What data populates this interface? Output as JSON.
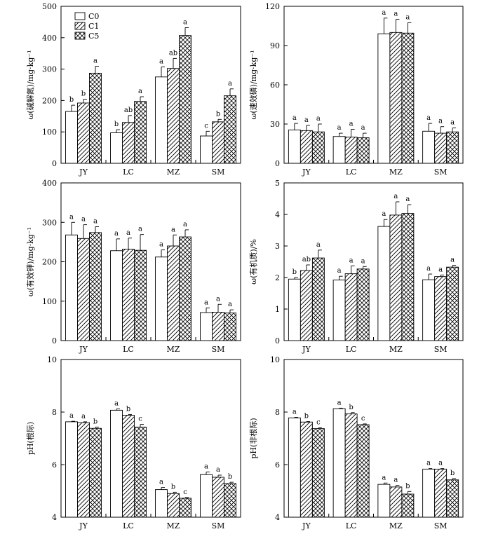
{
  "legend": [
    {
      "label": "C0",
      "pattern": "plain"
    },
    {
      "label": "C1",
      "pattern": "diagonal"
    },
    {
      "label": "C5",
      "pattern": "crosshatch"
    }
  ],
  "chart_data": [
    {
      "type": "bar",
      "ylabel": "ω(碱解氮)/mg·kg⁻¹",
      "ylim": [
        0,
        500
      ],
      "yticks": [
        0,
        100,
        200,
        300,
        400,
        500
      ],
      "categories": [
        "JY",
        "LC",
        "MZ",
        "SM"
      ],
      "series": [
        {
          "name": "C0",
          "values": [
            165,
            97,
            275,
            87
          ],
          "errors": [
            20,
            10,
            32,
            15
          ],
          "letters": [
            "b",
            "b",
            "a",
            "c"
          ]
        },
        {
          "name": "C1",
          "values": [
            192,
            130,
            302,
            132
          ],
          "errors": [
            12,
            22,
            32,
            8
          ],
          "letters": [
            "b",
            "ab",
            "ab",
            "b"
          ]
        },
        {
          "name": "C5",
          "values": [
            287,
            197,
            407,
            215
          ],
          "errors": [
            22,
            15,
            25,
            22
          ],
          "letters": [
            "a",
            "a",
            "a",
            "a"
          ]
        }
      ]
    },
    {
      "type": "bar",
      "ylabel": "ω(速效磷)/mg·kg⁻¹",
      "ylim": [
        0,
        120
      ],
      "yticks": [
        0,
        30,
        60,
        90,
        120
      ],
      "categories": [
        "JY",
        "LC",
        "MZ",
        "SM"
      ],
      "series": [
        {
          "name": "C0",
          "values": [
            25.5,
            20.5,
            99,
            24.5
          ],
          "errors": [
            5,
            2.5,
            12,
            6
          ],
          "letters": [
            "a",
            "a",
            "a",
            "a"
          ]
        },
        {
          "name": "C1",
          "values": [
            25,
            20,
            100,
            23
          ],
          "errors": [
            4,
            6,
            10,
            5
          ],
          "letters": [
            "a",
            "a",
            "a",
            "a"
          ]
        },
        {
          "name": "C5",
          "values": [
            24,
            19.5,
            99.5,
            24
          ],
          "errors": [
            6,
            3.5,
            8,
            3
          ],
          "letters": [
            "a",
            "a",
            "a",
            "a"
          ]
        }
      ]
    },
    {
      "type": "bar",
      "ylabel": "ω(有效钾)/mg·kg⁻¹",
      "ylim": [
        0,
        400
      ],
      "yticks": [
        0,
        100,
        200,
        300,
        400
      ],
      "categories": [
        "JY",
        "LC",
        "MZ",
        "SM"
      ],
      "series": [
        {
          "name": "C0",
          "values": [
            268,
            228,
            212,
            71
          ],
          "errors": [
            32,
            30,
            18,
            12
          ],
          "letters": [
            "a",
            "a",
            "a",
            "a"
          ]
        },
        {
          "name": "C1",
          "values": [
            259,
            232,
            240,
            72
          ],
          "errors": [
            35,
            28,
            28,
            20
          ],
          "letters": [
            "a",
            "a",
            "a",
            "a"
          ]
        },
        {
          "name": "C5",
          "values": [
            274,
            229,
            263,
            70
          ],
          "errors": [
            15,
            40,
            18,
            8
          ],
          "letters": [
            "a",
            "a",
            "a",
            "a"
          ]
        }
      ]
    },
    {
      "type": "bar",
      "ylabel": "ω(有机质)/%",
      "ylim": [
        0,
        5
      ],
      "yticks": [
        0,
        1,
        2,
        3,
        4,
        5
      ],
      "categories": [
        "JY",
        "LC",
        "MZ",
        "SM"
      ],
      "series": [
        {
          "name": "C0",
          "values": [
            1.95,
            1.92,
            3.62,
            1.93
          ],
          "errors": [
            0.05,
            0.12,
            0.22,
            0.18
          ],
          "letters": [
            "b",
            "a",
            "a",
            "a"
          ]
        },
        {
          "name": "C1",
          "values": [
            2.22,
            2.12,
            3.98,
            2.03
          ],
          "errors": [
            0.18,
            0.25,
            0.42,
            0.05
          ],
          "letters": [
            "ab",
            "a",
            "a",
            "a"
          ]
        },
        {
          "name": "C5",
          "values": [
            2.62,
            2.27,
            4.03,
            2.33
          ],
          "errors": [
            0.25,
            0.08,
            0.28,
            0.06
          ],
          "letters": [
            "a",
            "a",
            "a",
            "a"
          ]
        }
      ]
    },
    {
      "type": "bar",
      "ylabel": "pH(根际)",
      "ylim": [
        4,
        10
      ],
      "yticks": [
        4,
        6,
        8,
        10
      ],
      "categories": [
        "JY",
        "LC",
        "MZ",
        "SM"
      ],
      "series": [
        {
          "name": "C0",
          "values": [
            7.63,
            8.07,
            5.05,
            5.62
          ],
          "errors": [
            0.02,
            0.05,
            0.08,
            0.1
          ],
          "letters": [
            "a",
            "a",
            "a",
            "a"
          ]
        },
        {
          "name": "C1",
          "values": [
            7.6,
            7.88,
            4.9,
            5.52
          ],
          "errors": [
            0.03,
            0.03,
            0.05,
            0.08
          ],
          "letters": [
            "a",
            "b",
            "b",
            "a"
          ]
        },
        {
          "name": "C5",
          "values": [
            7.38,
            7.43,
            4.72,
            5.28
          ],
          "errors": [
            0.05,
            0.1,
            0.03,
            0.05
          ],
          "letters": [
            "b",
            "c",
            "c",
            "b"
          ]
        }
      ]
    },
    {
      "type": "bar",
      "ylabel": "pH(非根际)",
      "ylim": [
        4,
        10
      ],
      "yticks": [
        4,
        6,
        8,
        10
      ],
      "categories": [
        "JY",
        "LC",
        "MZ",
        "SM"
      ],
      "series": [
        {
          "name": "C0",
          "values": [
            7.78,
            8.13,
            5.25,
            5.83
          ],
          "errors": [
            0.02,
            0.02,
            0.05,
            0.02
          ],
          "letters": [
            "a",
            "a",
            "a",
            "a"
          ]
        },
        {
          "name": "C1",
          "values": [
            7.62,
            7.93,
            5.15,
            5.83
          ],
          "errors": [
            0.02,
            0.05,
            0.06,
            0.02
          ],
          "letters": [
            "b",
            "b",
            "a",
            "a"
          ]
        },
        {
          "name": "C5",
          "values": [
            7.37,
            7.52,
            4.88,
            5.42
          ],
          "errors": [
            0.03,
            0.03,
            0.1,
            0.05
          ],
          "letters": [
            "c",
            "c",
            "b",
            "b"
          ]
        }
      ]
    }
  ]
}
